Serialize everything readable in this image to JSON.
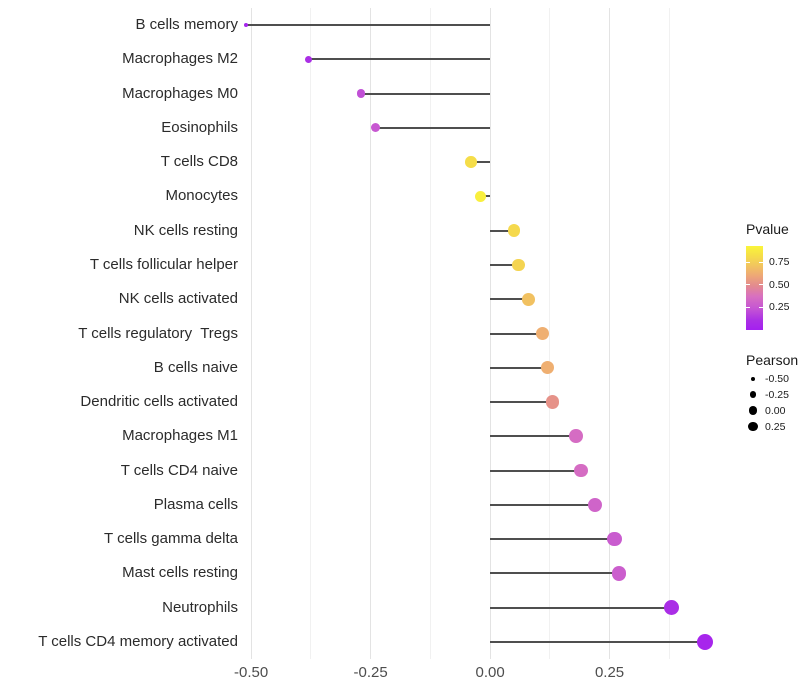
{
  "chart_data": {
    "type": "scatter",
    "subtype": "lollipop",
    "title": "",
    "xlabel": "",
    "ylabel": "",
    "xlim": [
      -0.515,
      0.502
    ],
    "x_ticks": [
      -0.5,
      -0.25,
      0.0,
      0.25
    ],
    "x_tick_labels": [
      "-0.50",
      "-0.25",
      "0.00",
      "0.25"
    ],
    "x_minor_ticks": [
      -0.375,
      -0.125,
      0.125,
      0.375
    ],
    "grid": true,
    "items": [
      {
        "label": "B cells memory",
        "pearson": -0.51,
        "pvalue": 0.03
      },
      {
        "label": "Macrophages M2",
        "pearson": -0.38,
        "pvalue": 0.1
      },
      {
        "label": "Macrophages M0",
        "pearson": -0.27,
        "pvalue": 0.22
      },
      {
        "label": "Eosinophils",
        "pearson": -0.24,
        "pvalue": 0.25
      },
      {
        "label": "T cells CD8",
        "pearson": -0.04,
        "pvalue": 0.82
      },
      {
        "label": "Monocytes",
        "pearson": -0.02,
        "pvalue": 0.9
      },
      {
        "label": "NK cells resting",
        "pearson": 0.05,
        "pvalue": 0.8
      },
      {
        "label": "T cells follicular helper",
        "pearson": 0.06,
        "pvalue": 0.78
      },
      {
        "label": "NK cells activated",
        "pearson": 0.08,
        "pvalue": 0.7
      },
      {
        "label": "T cells regulatory  Tregs",
        "pearson": 0.11,
        "pvalue": 0.63
      },
      {
        "label": "B cells naive",
        "pearson": 0.12,
        "pvalue": 0.63
      },
      {
        "label": "Dendritic cells activated",
        "pearson": 0.13,
        "pvalue": 0.52
      },
      {
        "label": "Macrophages M1",
        "pearson": 0.18,
        "pvalue": 0.35
      },
      {
        "label": "T cells CD4 naive",
        "pearson": 0.19,
        "pvalue": 0.35
      },
      {
        "label": "Plasma cells",
        "pearson": 0.22,
        "pvalue": 0.31
      },
      {
        "label": "T cells gamma delta",
        "pearson": 0.26,
        "pvalue": 0.27
      },
      {
        "label": "Mast cells resting",
        "pearson": 0.27,
        "pvalue": 0.28
      },
      {
        "label": "Neutrophils",
        "pearson": 0.38,
        "pvalue": 0.09
      },
      {
        "label": "T cells CD4 memory activated",
        "pearson": 0.45,
        "pvalue": 0.04
      }
    ],
    "legend_pvalue": {
      "title": "Pvalue",
      "tick_labels": [
        "0.75",
        "0.50",
        "0.25"
      ],
      "tick_values": [
        0.75,
        0.5,
        0.25
      ],
      "range": [
        0,
        0.93
      ]
    },
    "legend_pearson": {
      "title": "Pearson",
      "labels": [
        "-0.50",
        "-0.25",
        "0.00",
        "0.25"
      ],
      "values": [
        -0.5,
        -0.25,
        0.0,
        0.25
      ]
    },
    "colors": {
      "stem": "#4f4f4f",
      "grid_major": "#e3e3e3",
      "grid_minor": "#f1f1f1",
      "axis_text": "#4d4d4d",
      "scale_low": "#a420f0",
      "scale_high": "#faf53a",
      "scale_stops": [
        [
          0.0,
          "#a420f0"
        ],
        [
          0.12,
          "#ab31e4"
        ],
        [
          0.25,
          "#c454d4"
        ],
        [
          0.4,
          "#d870c0"
        ],
        [
          0.52,
          "#e28991"
        ],
        [
          0.65,
          "#eea876"
        ],
        [
          0.78,
          "#f2c85c"
        ],
        [
          0.9,
          "#f6e146"
        ],
        [
          1.0,
          "#faf53a"
        ]
      ]
    }
  }
}
